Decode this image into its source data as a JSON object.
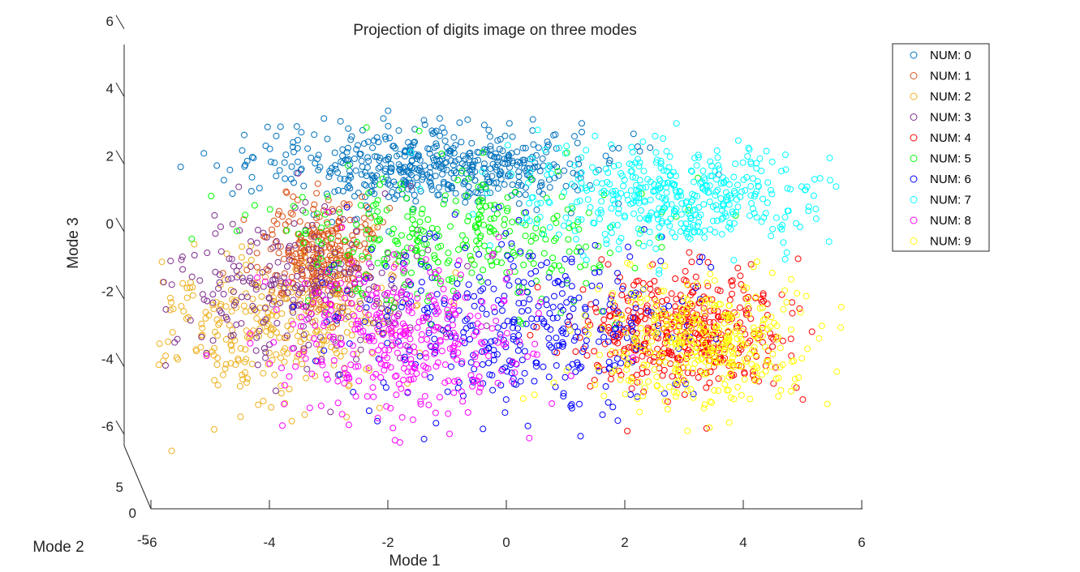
{
  "chart_data": {
    "type": "scatter",
    "dimensions": "3d",
    "title": "Projection of digits image on three modes",
    "xlabel": "Mode 1",
    "ylabel": "Mode 2",
    "zlabel": "Mode 3",
    "xlim": [
      -6,
      6
    ],
    "ylim": [
      -5,
      5
    ],
    "zlim": [
      -6,
      6
    ],
    "x_ticks": [
      "-6",
      "-4",
      "-2",
      "0",
      "2",
      "4",
      "6"
    ],
    "y_ticks": [
      "-5",
      "0",
      "5"
    ],
    "z_ticks": [
      "-6",
      "-4",
      "-2",
      "0",
      "2",
      "4",
      "6"
    ],
    "marker": "o",
    "legend_position": "top-right",
    "grid": false,
    "series": [
      {
        "name": "NUM: 0",
        "color": "#0072BD",
        "center": [
          -1.3,
          0,
          1.9
        ],
        "spread": [
          1.5,
          0.9,
          0.55
        ],
        "points": 520
      },
      {
        "name": "NUM: 1",
        "color": "#D95319",
        "center": [
          -3.1,
          0,
          -0.8
        ],
        "spread": [
          0.45,
          0.5,
          0.8
        ],
        "points": 320
      },
      {
        "name": "NUM: 2",
        "color": "#EDB120",
        "center": [
          -4.0,
          0,
          -2.9
        ],
        "spread": [
          1.2,
          0.8,
          1.1
        ],
        "points": 320
      },
      {
        "name": "NUM: 3",
        "color": "#7E2F8E",
        "center": [
          -3.6,
          0,
          -1.6
        ],
        "spread": [
          1.2,
          0.8,
          1.1
        ],
        "points": 260
      },
      {
        "name": "NUM: 4",
        "color": "#FF0000",
        "center": [
          3.0,
          0,
          -3.0
        ],
        "spread": [
          0.85,
          0.6,
          0.9
        ],
        "points": 430
      },
      {
        "name": "NUM: 5",
        "color": "#00FF00",
        "center": [
          -0.8,
          0,
          -0.3
        ],
        "spread": [
          1.5,
          0.8,
          1.0
        ],
        "points": 320
      },
      {
        "name": "NUM: 6",
        "color": "#0000FF",
        "center": [
          0.2,
          0,
          -2.8
        ],
        "spread": [
          1.4,
          0.8,
          1.3
        ],
        "points": 380
      },
      {
        "name": "NUM: 7",
        "color": "#00FFFF",
        "center": [
          2.8,
          0,
          1.0
        ],
        "spread": [
          1.3,
          0.8,
          0.75
        ],
        "points": 440
      },
      {
        "name": "NUM: 8",
        "color": "#FF00FF",
        "center": [
          -1.8,
          0,
          -3.3
        ],
        "spread": [
          1.1,
          0.7,
          1.1
        ],
        "points": 360
      },
      {
        "name": "NUM: 9",
        "color": "#FFFF00",
        "center": [
          3.3,
          0,
          -3.3
        ],
        "spread": [
          0.95,
          0.6,
          0.9
        ],
        "points": 380
      }
    ]
  }
}
